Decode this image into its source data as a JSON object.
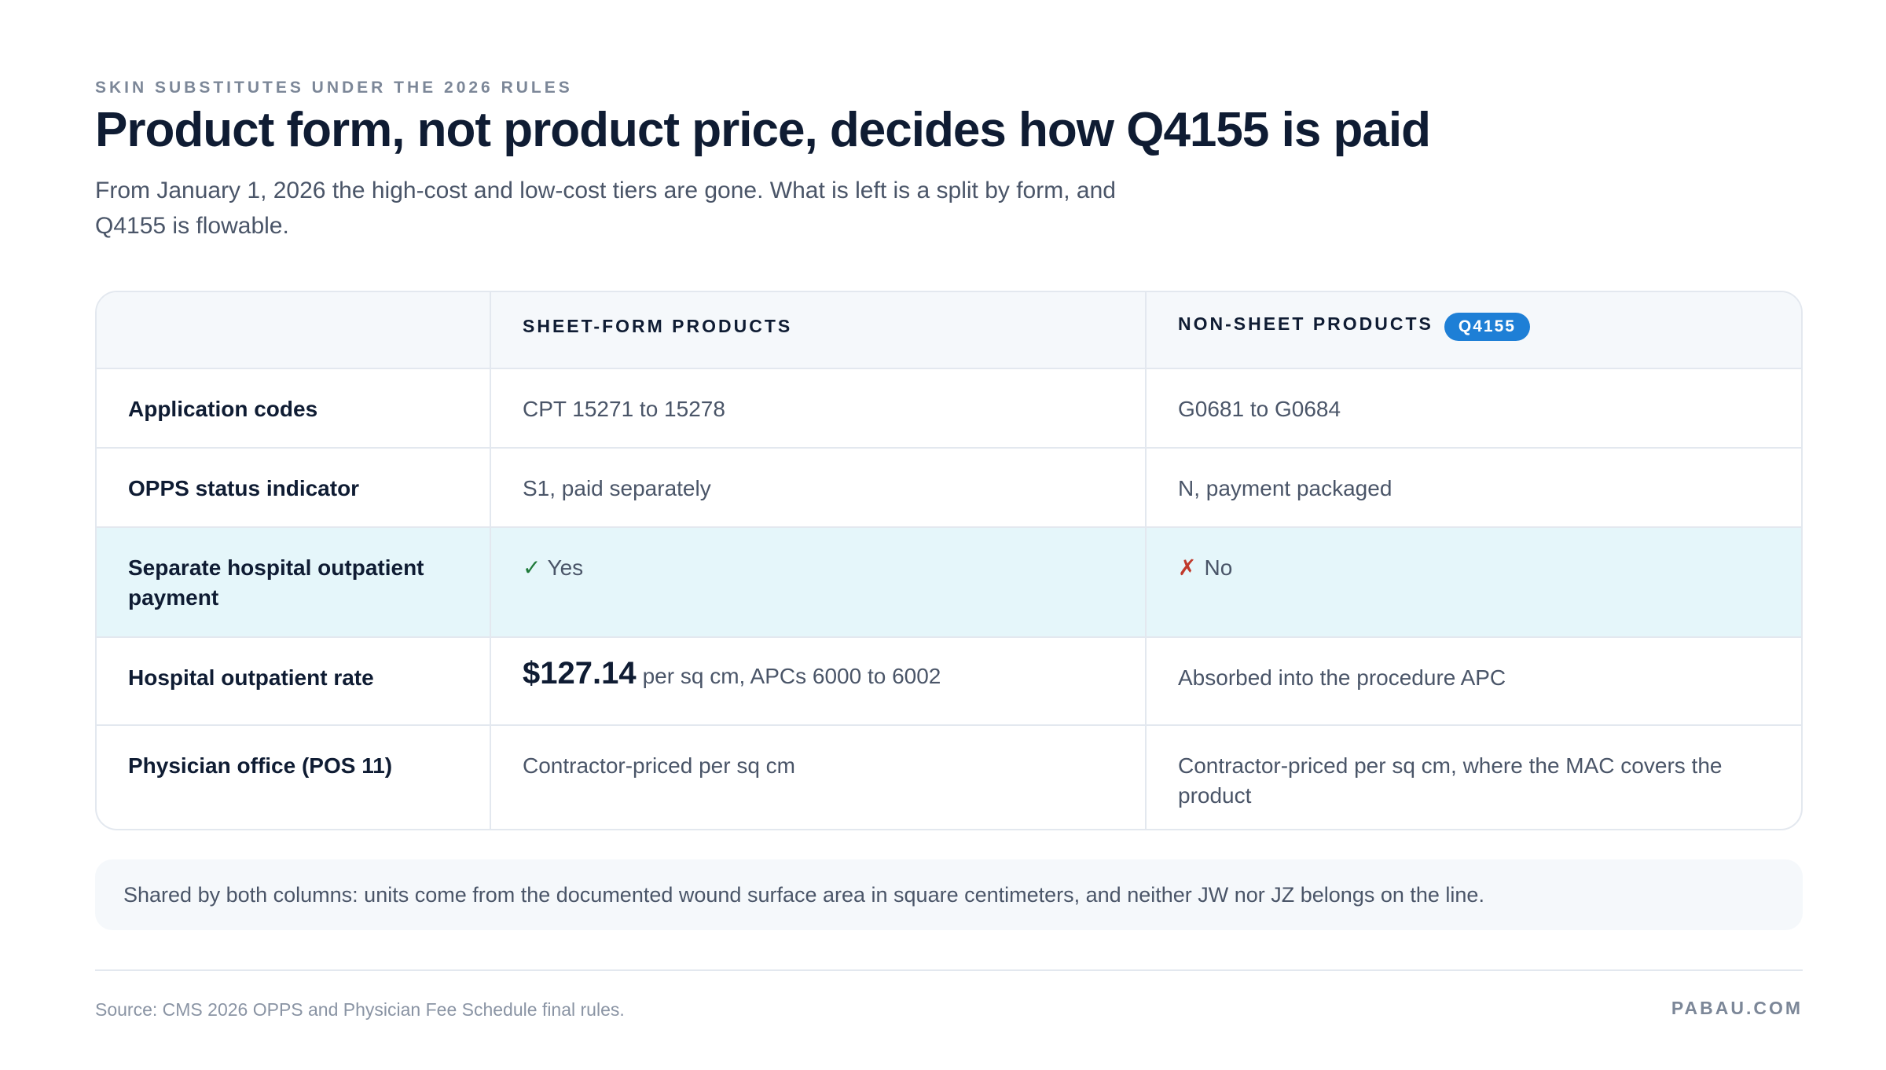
{
  "header": {
    "eyebrow": "SKIN SUBSTITUTES UNDER THE 2026 RULES",
    "title": "Product form, not product price, decides how Q4155 is paid",
    "subtitle_line1": "From January 1, 2026 the high-cost and low-cost tiers are gone. What is left is a split by form, and",
    "subtitle_line2": "Q4155 is flowable."
  },
  "table": {
    "columns": {
      "sheet": "SHEET-FORM PRODUCTS",
      "nonsheet": "NON-SHEET PRODUCTS",
      "nonsheet_badge": "Q4155"
    },
    "rows": [
      {
        "label": "Application codes",
        "sheet": "CPT 15271 to 15278",
        "nonsheet": "G0681 to G0684"
      },
      {
        "label": "OPPS status indicator",
        "sheet": "S1, paid separately",
        "nonsheet": "N, payment packaged"
      },
      {
        "label": "Separate hospital outpatient payment",
        "sheet_mark": "✓",
        "sheet": "Yes",
        "nonsheet_mark": "✗",
        "nonsheet": "No"
      },
      {
        "label": "Hospital outpatient rate",
        "sheet_price": "$127.14",
        "sheet": "per sq cm, APCs 6000 to 6002",
        "nonsheet": "Absorbed into the procedure APC"
      },
      {
        "label": "Physician office (POS 11)",
        "sheet": "Contractor-priced per sq cm",
        "nonsheet": "Contractor-priced per sq cm, where the MAC covers the product"
      }
    ]
  },
  "note": "Shared by both columns: units come from the documented wound surface area in square centimeters, and neither JW nor JZ belongs on the line.",
  "footer": {
    "source": "Source: CMS 2026 OPPS and Physician Fee Schedule final rules.",
    "brand": "PABAU.COM"
  }
}
